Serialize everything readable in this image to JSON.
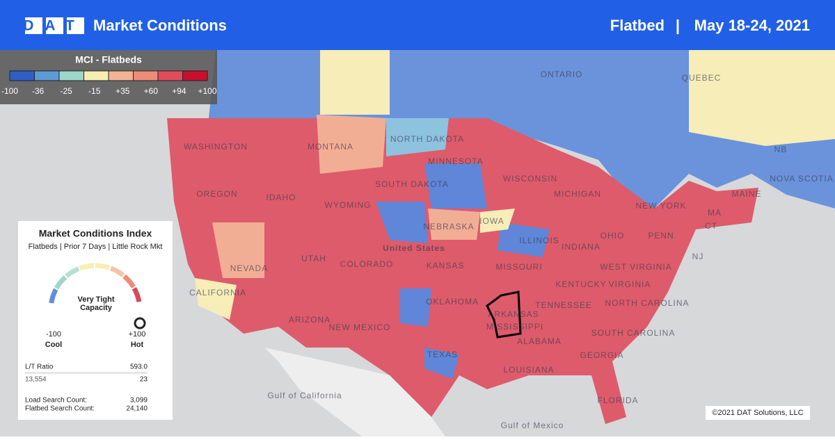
{
  "header": {
    "logo": "DAT",
    "title": "Market Conditions",
    "mode": "Flatbed",
    "separator": "|",
    "date": "May 18-24, 2021"
  },
  "legend": {
    "title": "MCI - Flatbeds",
    "colors": [
      "#2f5fc4",
      "#5d9bd6",
      "#9fd6cc",
      "#f7eeb2",
      "#f4b394",
      "#ee8c78",
      "#e14c5c",
      "#c8102e"
    ],
    "ticks": [
      -100,
      -36,
      -25,
      -15,
      {
        "value": 35,
        "label": "+35"
      },
      {
        "value": 60,
        "label": "+60"
      },
      {
        "value": 94,
        "label": "+94"
      },
      {
        "value": 100,
        "label": "+100"
      }
    ]
  },
  "panel": {
    "title": "Market Conditions Index",
    "subtitle": "Flatbeds | Prior 7 Days | Little Rock Mkt",
    "gauge_text": "Very Tight Capacity",
    "min_label": "-100",
    "min_name": "Cool",
    "max_label": "+100",
    "max_name": "Hot",
    "rows": [
      [
        "L/T Ratio",
        "593.0"
      ],
      [
        "13,554",
        "23"
      ],
      [
        "Load Search Count:",
        "3,099"
      ],
      [
        "Flatbed Search Count:",
        "24,140"
      ]
    ]
  },
  "map_labels": [
    "ONTARIO",
    "QUEBEC",
    "NORTH DAKOTA",
    "WASHINGTON",
    "MONTANA",
    "MINNESOTA",
    "SOUTH DAKOTA",
    "WISCONSIN",
    "MICHIGAN",
    "NB",
    "NOVA SCOTIA",
    "MAINE",
    "OREGON",
    "IDAHO",
    "WYOMING",
    "NEBRASKA",
    "IOWA",
    "NEW YORK",
    "NEVADA",
    "UTAH",
    "COLORADO",
    "United States",
    "KANSAS",
    "MISSOURI",
    "ILLINOIS",
    "INDIANA",
    "OHIO",
    "PENN",
    "NJ",
    "CALIFORNIA",
    "OKLAHOMA",
    "KENTUCKY",
    "WEST VIRGINIA",
    "VIRGINIA",
    "ARIZONA",
    "NEW MEXICO",
    "ARKANSAS",
    "MISSISSIPPI",
    "TENNESSEE",
    "NORTH CAROLINA",
    "SOUTH CAROLINA",
    "ALABAMA",
    "GEORGIA",
    "TEXAS",
    "LOUISIANA",
    "FLORIDA",
    "CT",
    "MA",
    "Gulf of California",
    "Gulf of Mexico"
  ],
  "copyright": "©2021 DAT Solutions, LLC"
}
